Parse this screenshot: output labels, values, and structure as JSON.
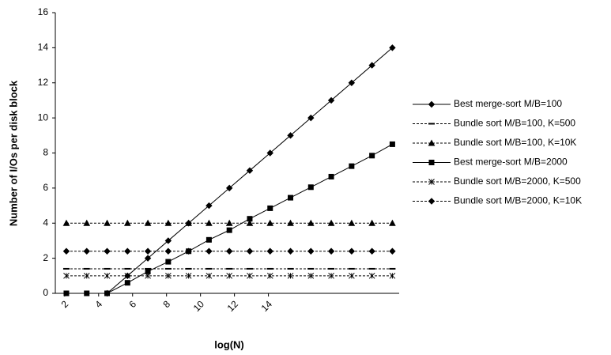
{
  "chart_data": {
    "type": "line",
    "xlabel": "log(N)",
    "ylabel": "Number of I/Os per disk block",
    "x": [
      2.1,
      3.3,
      4.5,
      5.7,
      6.9,
      8.1,
      9.3,
      10.5,
      11.7,
      12.9,
      14.1,
      15.3,
      16.5,
      17.7,
      18.9,
      20.1,
      21.3
    ],
    "xlim": [
      1.45,
      21.7
    ],
    "xticks": [
      2,
      4,
      6,
      8,
      10,
      12,
      14
    ],
    "ylim": [
      0,
      16
    ],
    "yticks": [
      0,
      2,
      4,
      6,
      8,
      10,
      12,
      14,
      16
    ],
    "grid": false,
    "legend": "right",
    "series": [
      {
        "name": "Best merge-sort M/B=100",
        "color": "#000000",
        "marker": "diamond",
        "dashed": false,
        "values": [
          null,
          null,
          0,
          1,
          2,
          3,
          4,
          5,
          6,
          7,
          8,
          9,
          10,
          11,
          12,
          13,
          14
        ]
      },
      {
        "name": "Bundle sort M/B=100, K=500",
        "color": "#000000",
        "marker": "dash",
        "dashed": true,
        "values": [
          1.4,
          1.4,
          1.4,
          1.4,
          1.4,
          1.4,
          1.4,
          1.4,
          1.4,
          1.4,
          1.4,
          1.4,
          1.4,
          1.4,
          1.4,
          1.4,
          1.4
        ]
      },
      {
        "name": "Bundle sort M/B=100, K=10K",
        "color": "#000000",
        "marker": "triangle",
        "dashed": true,
        "values": [
          4,
          4,
          4,
          4,
          4,
          4,
          4,
          4,
          4,
          4,
          4,
          4,
          4,
          4,
          4,
          4,
          4
        ]
      },
      {
        "name": "Best merge-sort M/B=2000",
        "color": "#000000",
        "marker": "square",
        "dashed": false,
        "values": [
          0,
          0,
          0,
          0.6,
          1.25,
          1.8,
          2.4,
          3.05,
          3.6,
          4.25,
          4.85,
          5.45,
          6.05,
          6.65,
          7.25,
          7.85,
          8.5
        ]
      },
      {
        "name": "Bundle sort M/B=2000, K=500",
        "color": "#000000",
        "marker": "asterisk",
        "dashed": true,
        "values": [
          1,
          1,
          1,
          1,
          1,
          1,
          1,
          1,
          1,
          1,
          1,
          1,
          1,
          1,
          1,
          1,
          1
        ]
      },
      {
        "name": "Bundle sort M/B=2000, K=10K",
        "color": "#000000",
        "marker": "diamond",
        "dashed": true,
        "values": [
          2.4,
          2.4,
          2.4,
          2.4,
          2.4,
          2.4,
          2.4,
          2.4,
          2.4,
          2.4,
          2.4,
          2.4,
          2.4,
          2.4,
          2.4,
          2.4,
          2.4
        ]
      }
    ]
  }
}
